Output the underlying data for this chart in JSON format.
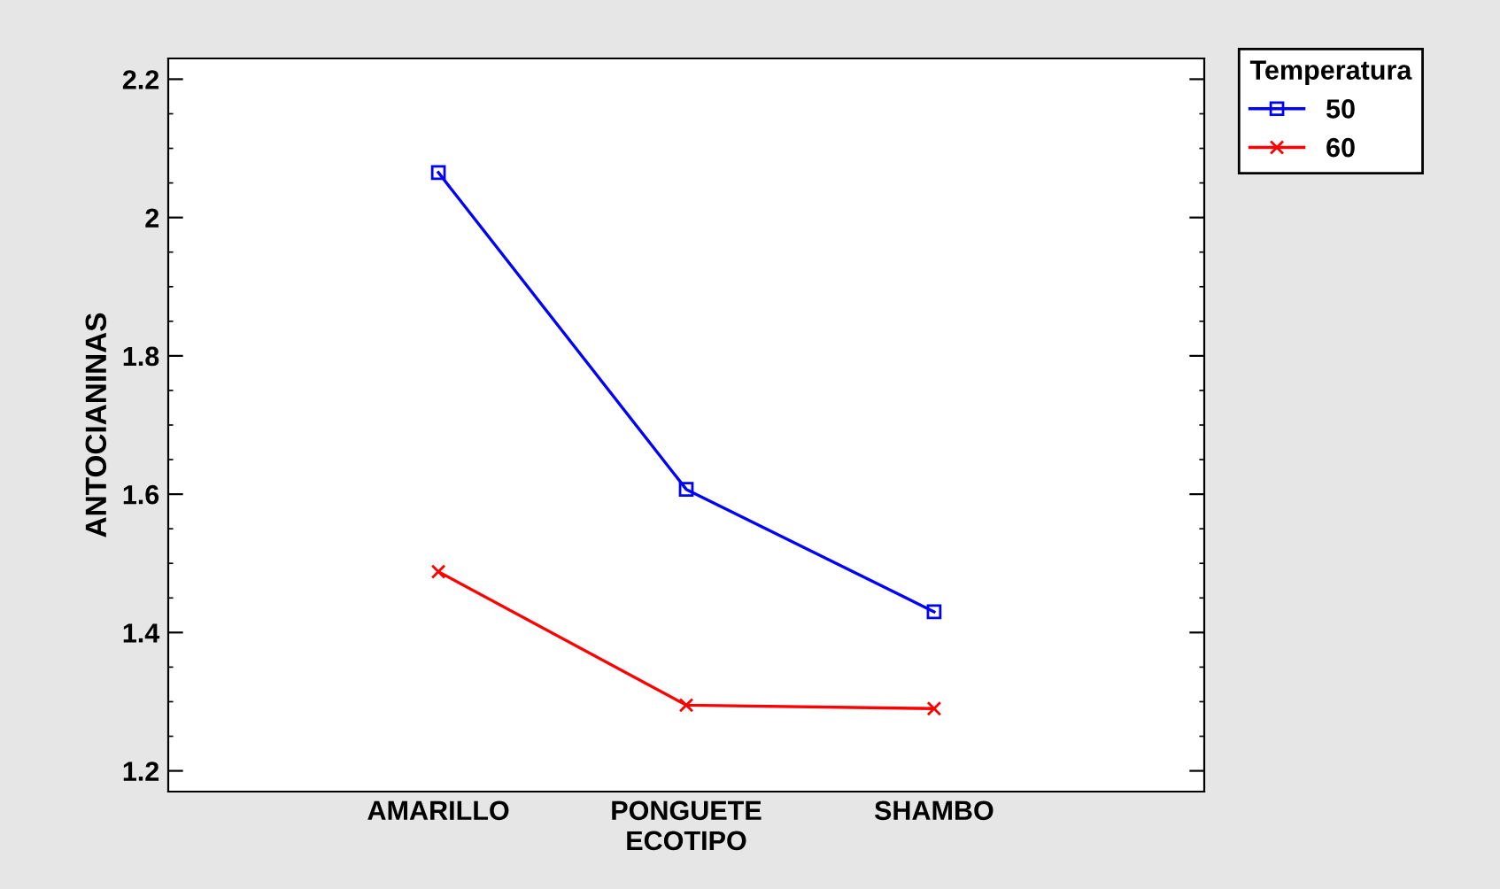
{
  "chart_data": {
    "type": "line",
    "xlabel": "ECOTIPO",
    "ylabel": "ANTOCIANINAS",
    "legend_title": "Temperatura",
    "legend": "top right",
    "grid": false,
    "categories": [
      "AMARILLO",
      "PONGUETE",
      "SHAMBO"
    ],
    "ylim": [
      1.17,
      2.23
    ],
    "yticks": [
      1.2,
      1.4,
      1.6,
      1.8,
      2,
      2.2
    ],
    "series": [
      {
        "name": "50",
        "color": "#0000ff",
        "marker": "square",
        "values": [
          2.065,
          1.607,
          1.43
        ]
      },
      {
        "name": "60",
        "color": "#ff0000",
        "marker": "cross",
        "values": [
          1.488,
          1.295,
          1.29
        ]
      }
    ]
  }
}
